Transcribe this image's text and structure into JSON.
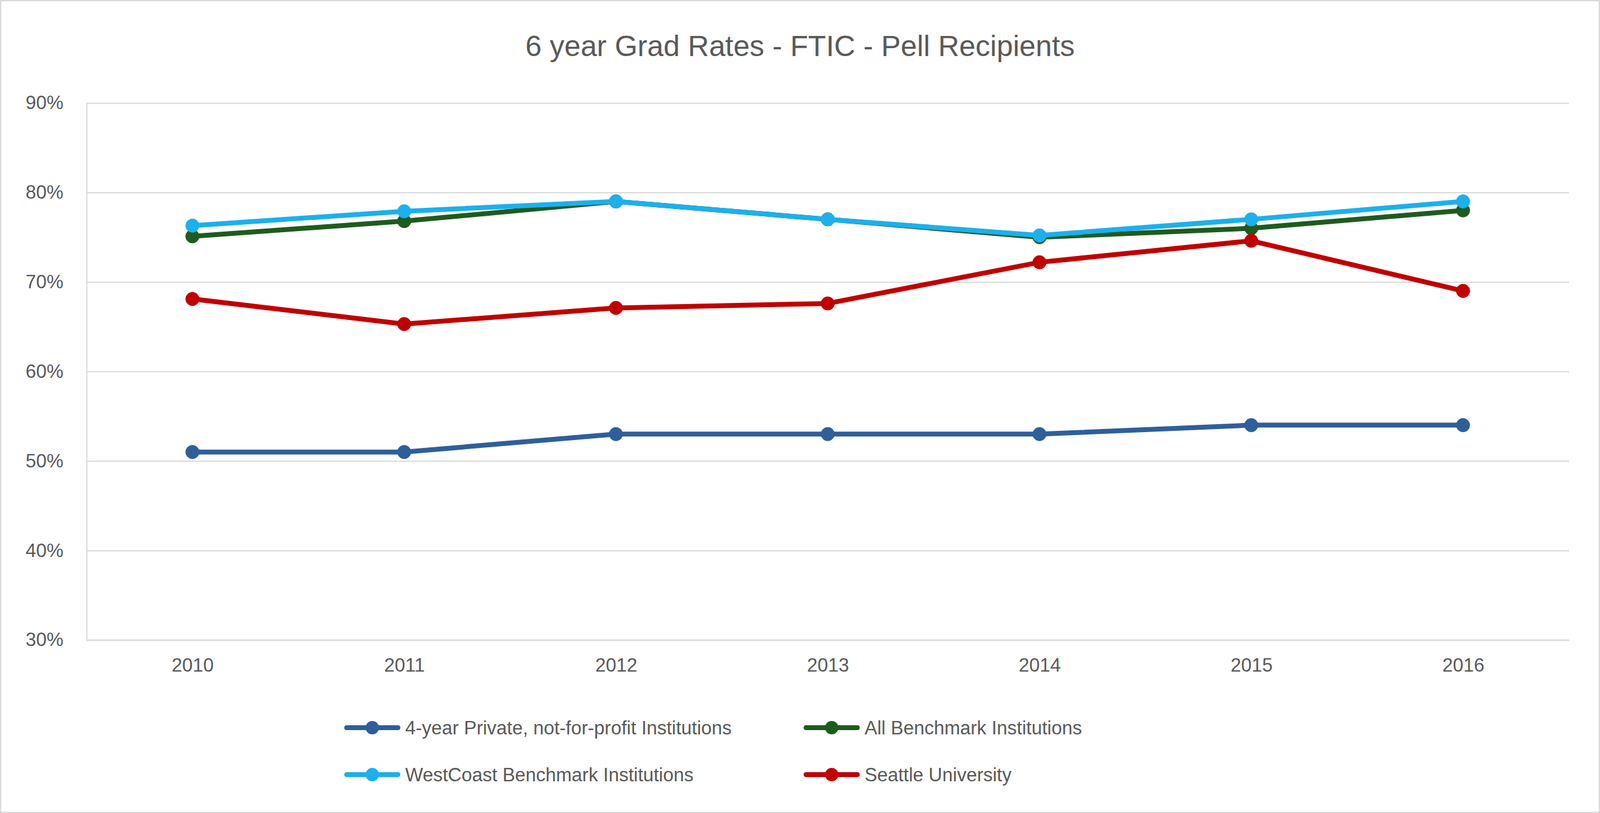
{
  "chart_data": {
    "type": "line",
    "title": "6 year Grad Rates - FTIC - Pell Recipients",
    "categories": [
      "2010",
      "2011",
      "2012",
      "2013",
      "2014",
      "2015",
      "2016"
    ],
    "series": [
      {
        "name": "4-year Private, not-for-profit Institutions",
        "color": "#2E5F99",
        "values": [
          51,
          51,
          53,
          53,
          53,
          54,
          54
        ]
      },
      {
        "name": "All Benchmark Institutions",
        "color": "#1E5B1E",
        "values": [
          75.1,
          76.8,
          79,
          77,
          75,
          76,
          78
        ]
      },
      {
        "name": "WestCoast Benchmark Institutions",
        "color": "#1CB0EC",
        "values": [
          76.3,
          77.9,
          79,
          77,
          75.2,
          77,
          79
        ]
      },
      {
        "name": "Seattle University",
        "color": "#C00000",
        "values": [
          68.1,
          65.3,
          67.1,
          67.6,
          72.2,
          74.6,
          69
        ]
      }
    ],
    "ylim": [
      30,
      90
    ],
    "yticks": [
      {
        "value": 30,
        "label": "30%"
      },
      {
        "value": 40,
        "label": "40%"
      },
      {
        "value": 50,
        "label": "50%"
      },
      {
        "value": 60,
        "label": "60%"
      },
      {
        "value": 70,
        "label": "70%"
      },
      {
        "value": 80,
        "label": "80%"
      },
      {
        "value": 90,
        "label": "90%"
      }
    ],
    "grid": true,
    "legend": "bottom",
    "marker": "circle"
  }
}
